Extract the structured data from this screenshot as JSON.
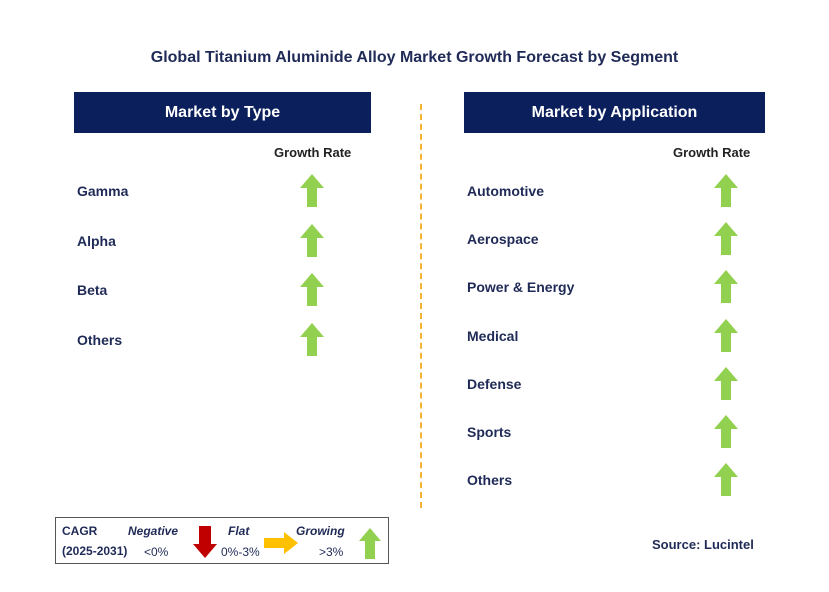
{
  "title": "Global Titanium Aluminide Alloy Market Growth Forecast by Segment",
  "left_panel": {
    "header": "Market by Type",
    "growth_rate_label": "Growth Rate",
    "items": [
      {
        "label": "Gamma",
        "trend": "growing"
      },
      {
        "label": "Alpha",
        "trend": "growing"
      },
      {
        "label": "Beta",
        "trend": "growing"
      },
      {
        "label": "Others",
        "trend": "growing"
      }
    ]
  },
  "right_panel": {
    "header": "Market by Application",
    "growth_rate_label": "Growth Rate",
    "items": [
      {
        "label": "Automotive",
        "trend": "growing"
      },
      {
        "label": "Aerospace",
        "trend": "growing"
      },
      {
        "label": "Power & Energy",
        "trend": "growing"
      },
      {
        "label": "Medical",
        "trend": "growing"
      },
      {
        "label": "Defense",
        "trend": "growing"
      },
      {
        "label": "Sports",
        "trend": "growing"
      },
      {
        "label": "Others",
        "trend": "growing"
      }
    ]
  },
  "legend": {
    "cagr_label": "CAGR",
    "period": "(2025-2031)",
    "negative": {
      "label": "Negative",
      "range": "<0%",
      "color": "#c00000",
      "icon": "down-arrow-icon"
    },
    "flat": {
      "label": "Flat",
      "range": "0%-3%",
      "color": "#ffc000",
      "icon": "right-arrow-icon"
    },
    "growing": {
      "label": "Growing",
      "range": ">3%",
      "color": "#92d050",
      "icon": "up-arrow-icon"
    }
  },
  "source": "Source: Lucintel",
  "colors": {
    "header_bg": "#0a1f5c",
    "divider": "#f2b233",
    "text": "#1f2a57"
  }
}
